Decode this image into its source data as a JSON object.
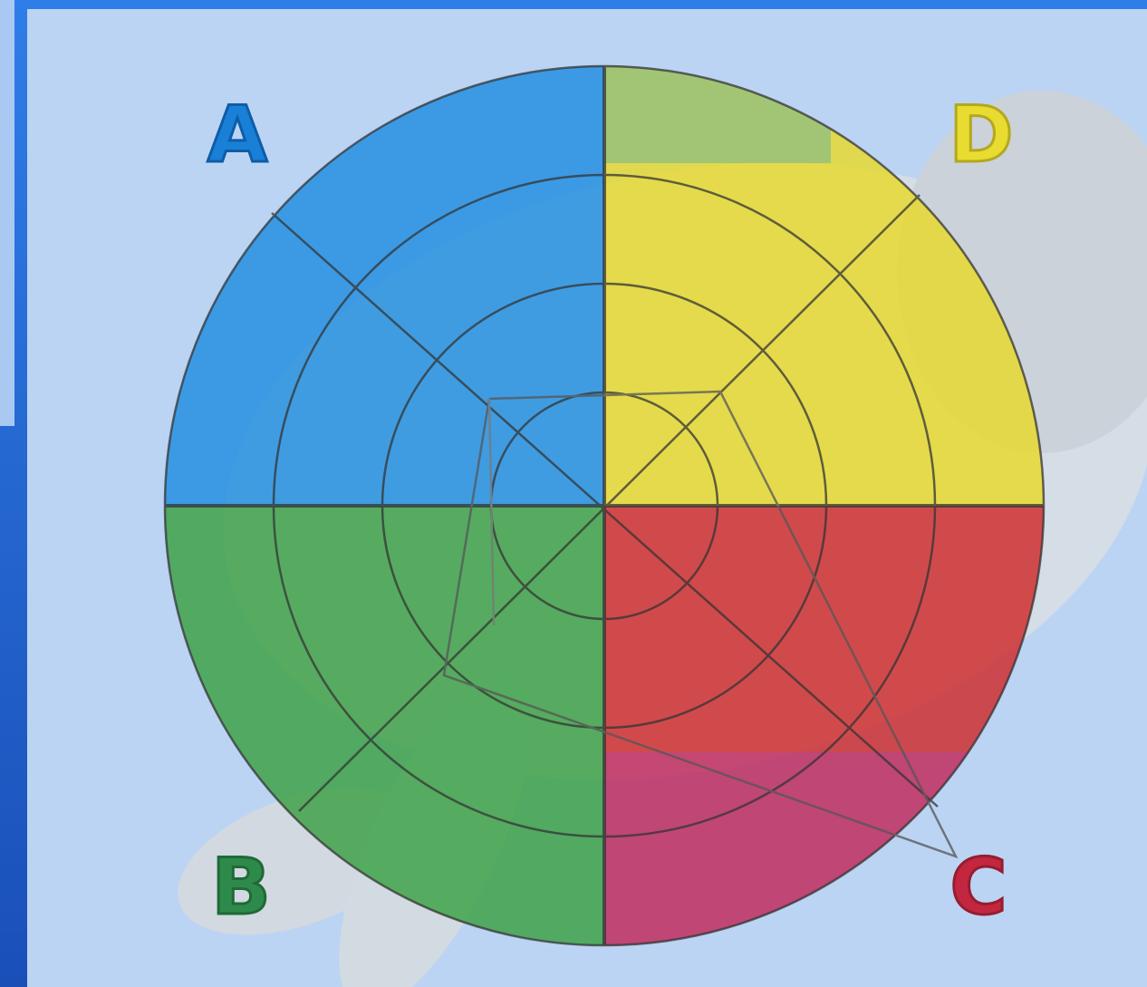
{
  "quadrants": [
    {
      "label": "A"
    },
    {
      "label": "B"
    },
    {
      "label": "C"
    },
    {
      "label": "D"
    }
  ]
}
